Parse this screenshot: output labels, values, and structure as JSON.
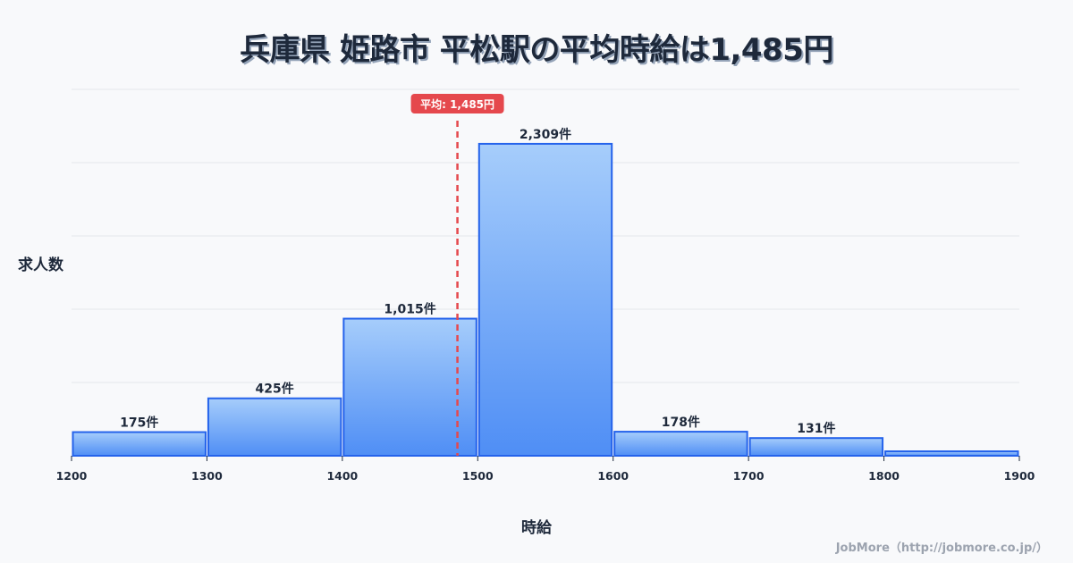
{
  "title": "兵庫県 姫路市 平松駅の平均時給は1,485円",
  "axis": {
    "ylabel": "求人数",
    "xlabel": "時給"
  },
  "credit": "JobMore（http://jobmore.co.jp/）",
  "average": {
    "label": "平均: 1,485円",
    "value": 1485,
    "color": "#e5484d"
  },
  "colors": {
    "bar_top": "#a6cdfb",
    "bar_bottom": "#4f8ef5",
    "bar_stroke": "#2563eb",
    "grid": "#e5e7eb",
    "text": "#1e293b"
  },
  "chart_data": {
    "type": "bar",
    "title": "兵庫県 姫路市 平松駅の平均時給は1,485円",
    "xlabel": "時給",
    "ylabel": "求人数",
    "bins": [
      [
        1200,
        1300
      ],
      [
        1300,
        1400
      ],
      [
        1400,
        1500
      ],
      [
        1500,
        1600
      ],
      [
        1600,
        1700
      ],
      [
        1700,
        1800
      ],
      [
        1800,
        1900
      ]
    ],
    "categories": [
      "1200-1300",
      "1300-1400",
      "1400-1500",
      "1500-1600",
      "1600-1700",
      "1700-1800",
      "1800-1900"
    ],
    "values": [
      175,
      425,
      1015,
      2309,
      178,
      131,
      33
    ],
    "labels": [
      "175件",
      "425件",
      "1,015件",
      "2,309件",
      "178件",
      "131件",
      ""
    ],
    "x_ticks": [
      1200,
      1300,
      1400,
      1500,
      1600,
      1700,
      1800,
      1900
    ],
    "xlim": [
      1200,
      1900
    ],
    "ylim": [
      0,
      2712
    ],
    "grid": true,
    "y_tick_labels_shown": false,
    "annotations": [
      {
        "type": "vline",
        "x": 1485,
        "style": "dashed",
        "label": "平均: 1,485円"
      }
    ]
  }
}
